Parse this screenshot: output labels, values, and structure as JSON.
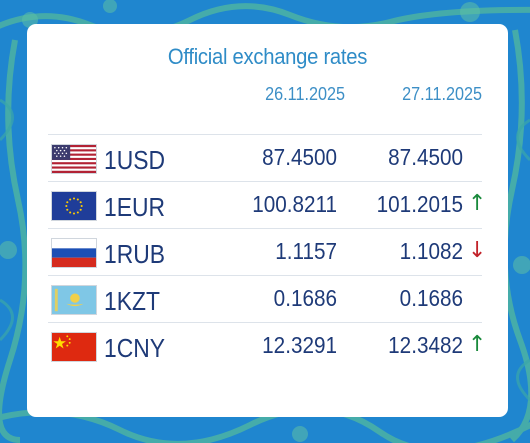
{
  "widget": {
    "title": "Official exchange rates",
    "date_previous": "26.11.2025",
    "date_current": "27.11.2025"
  },
  "rates": [
    {
      "label": "1USD",
      "flag": "us-flag-icon",
      "previous": "87.4500",
      "current": "87.4500",
      "trend_symbol": "",
      "trend": "same"
    },
    {
      "label": "1EUR",
      "flag": "eu-flag-icon",
      "previous": "100.8211",
      "current": "101.2015",
      "trend_symbol": "↑",
      "trend": "up"
    },
    {
      "label": "1RUB",
      "flag": "ru-flag-icon",
      "previous": "1.1157",
      "current": "1.1082",
      "trend_symbol": "↓",
      "trend": "down"
    },
    {
      "label": "1KZT",
      "flag": "kz-flag-icon",
      "previous": "0.1686",
      "current": "0.1686",
      "trend_symbol": "",
      "trend": "same"
    },
    {
      "label": "1CNY",
      "flag": "cn-flag-icon",
      "previous": "12.3291",
      "current": "12.3482",
      "trend_symbol": "↑",
      "trend": "up"
    }
  ],
  "colors": {
    "background": "#1f86cf",
    "text": "#1e3a78",
    "header": "#2f8cc7",
    "up": "#1a8a3c",
    "down": "#c2232a"
  }
}
